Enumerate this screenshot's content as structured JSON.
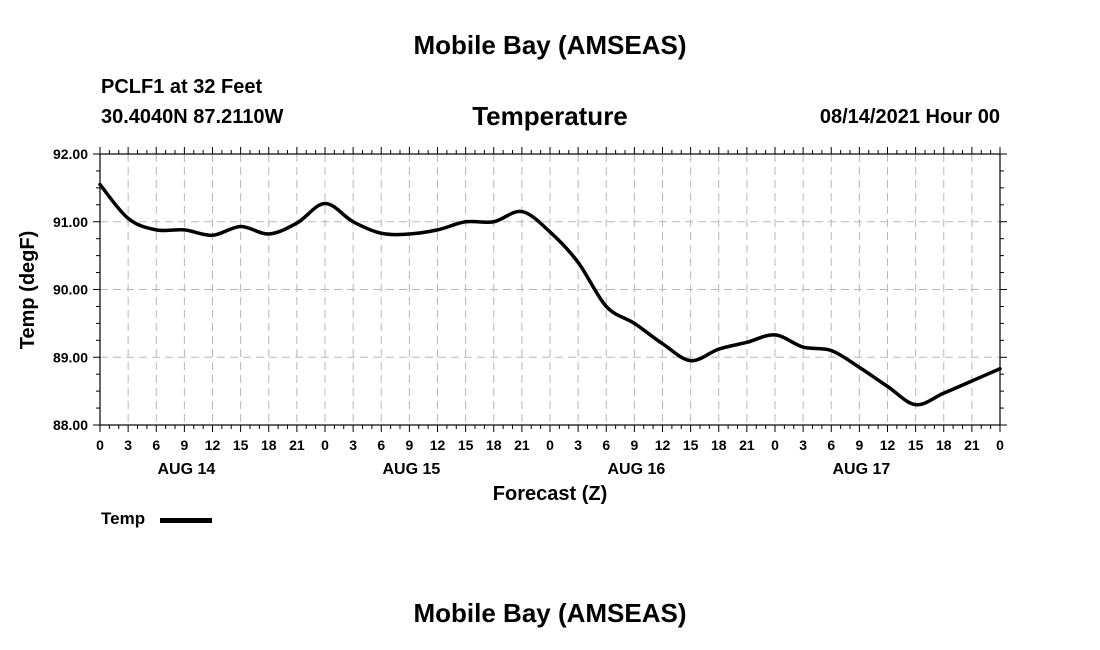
{
  "header": {
    "title": "Mobile Bay (AMSEAS)",
    "station": "PCLF1 at 32 Feet",
    "coords": "30.4040N  87.2110W",
    "variable": "Temperature",
    "datetime": "08/14/2021 Hour 00"
  },
  "footer": {
    "title": "Mobile Bay (AMSEAS)"
  },
  "chart_data": {
    "type": "line",
    "xlabel": "Forecast (Z)",
    "ylabel": "Temp (degF)",
    "ylim": [
      88,
      92
    ],
    "xlim": [
      0,
      96
    ],
    "y_ticks": [
      "88.00",
      "89.00",
      "90.00",
      "91.00",
      "92.00"
    ],
    "x_ticks": [
      "0",
      "3",
      "6",
      "9",
      "12",
      "15",
      "18",
      "21",
      "0",
      "3",
      "6",
      "9",
      "12",
      "15",
      "18",
      "21",
      "0",
      "3",
      "6",
      "9",
      "12",
      "15",
      "18",
      "21",
      "0",
      "3",
      "6",
      "9",
      "12",
      "15",
      "18",
      "21",
      "0"
    ],
    "day_labels": [
      {
        "label": "AUG 14",
        "hour": 9
      },
      {
        "label": "AUG 15",
        "hour": 33
      },
      {
        "label": "AUG 16",
        "hour": 57
      },
      {
        "label": "AUG 17",
        "hour": 81
      }
    ],
    "grid": true,
    "legend": {
      "position": "bottom-left",
      "entries": [
        "Temp"
      ]
    },
    "series": [
      {
        "name": "Temp",
        "color": "#000000",
        "x": [
          0,
          3,
          6,
          9,
          12,
          15,
          18,
          21,
          24,
          27,
          30,
          33,
          36,
          39,
          42,
          45,
          48,
          51,
          54,
          57,
          60,
          63,
          66,
          69,
          72,
          75,
          78,
          81,
          84,
          87,
          90,
          93,
          96
        ],
        "y": [
          91.55,
          91.05,
          90.88,
          90.88,
          90.8,
          90.93,
          90.82,
          90.98,
          91.27,
          91.0,
          90.83,
          90.82,
          90.88,
          91.0,
          91.0,
          91.15,
          90.85,
          90.4,
          89.75,
          89.5,
          89.2,
          88.95,
          89.12,
          89.22,
          89.33,
          89.15,
          89.1,
          88.85,
          88.57,
          88.3,
          88.47,
          88.65,
          88.83
        ]
      }
    ]
  }
}
